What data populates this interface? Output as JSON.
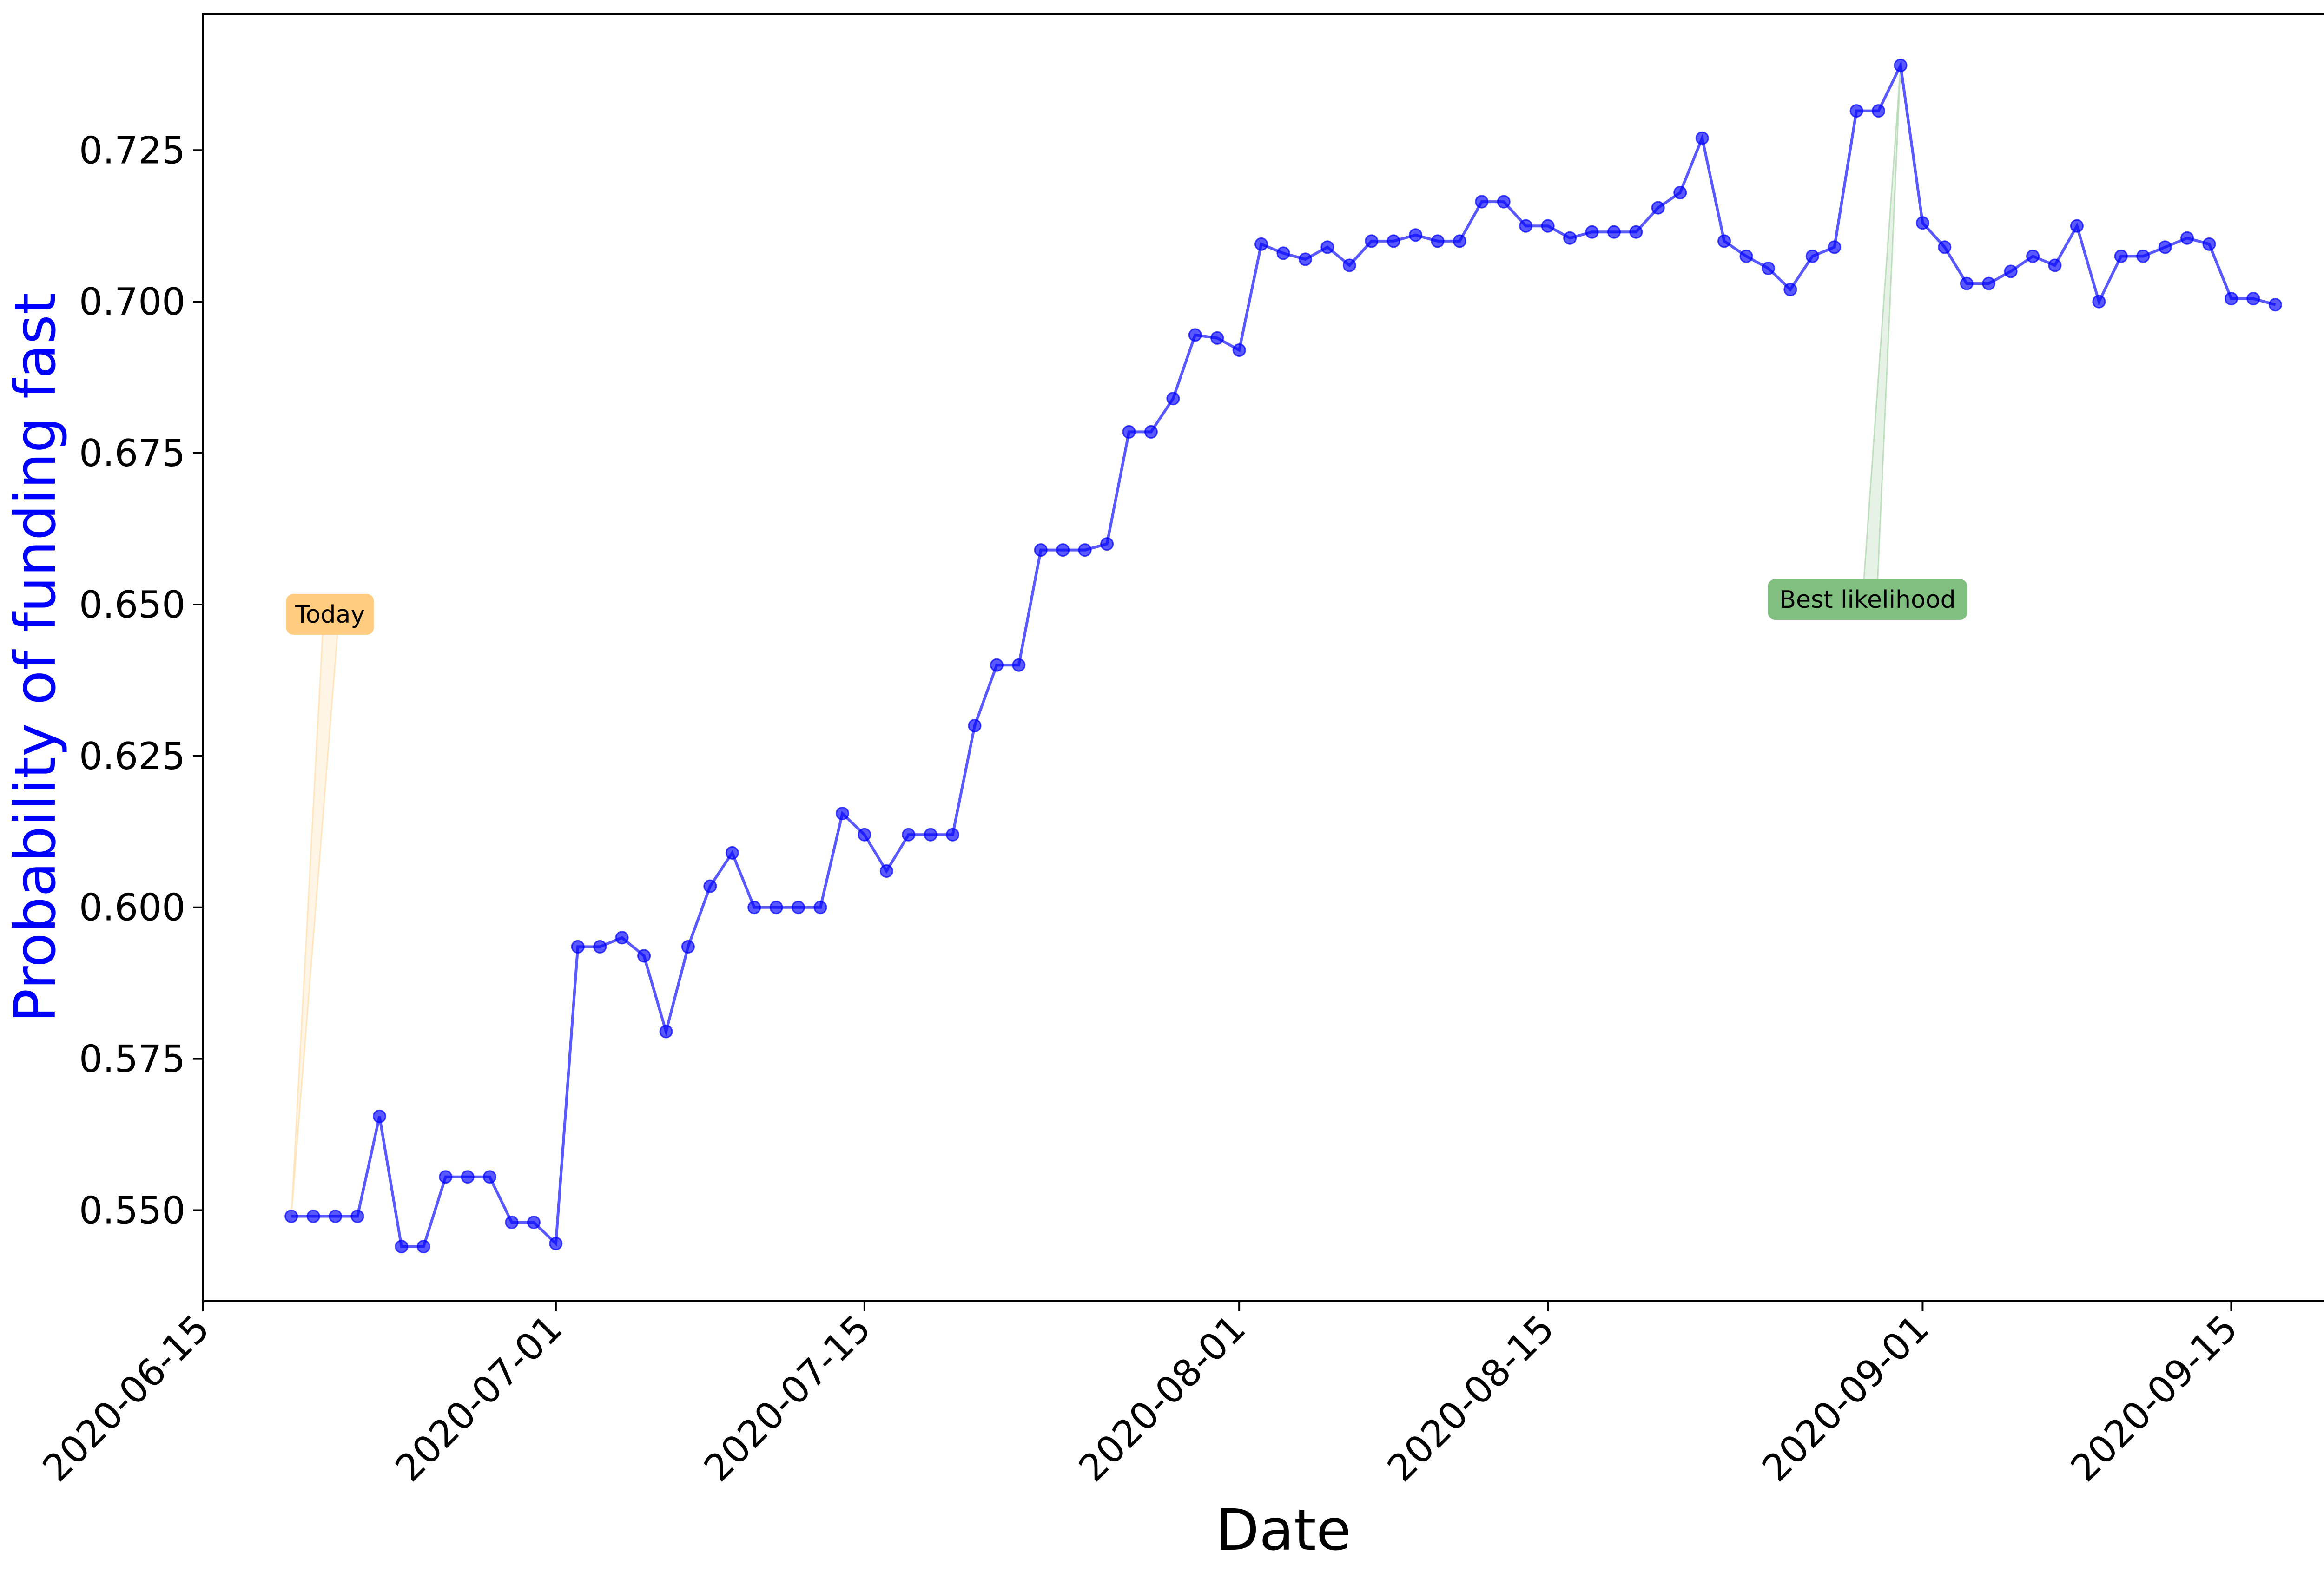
{
  "chart_data": {
    "type": "line",
    "xlabel": "Date",
    "ylabel": "Probability of funding fast",
    "ylabel_color": "#0000ff",
    "line_color": "#0000ff",
    "x_ticks": [
      "2020-06-15",
      "2020-07-01",
      "2020-07-15",
      "2020-08-01",
      "2020-08-15",
      "2020-09-01",
      "2020-09-15"
    ],
    "y_ticks": [
      "0.550",
      "0.575",
      "0.600",
      "0.625",
      "0.650",
      "0.675",
      "0.700",
      "0.725"
    ],
    "xlim": [
      "2020-06-15",
      "2020-09-21"
    ],
    "ylim": [
      0.535,
      0.7475
    ],
    "grid": false,
    "series": [
      {
        "x": [
          "2020-06-19",
          "2020-06-20",
          "2020-06-21",
          "2020-06-22",
          "2020-06-23",
          "2020-06-24",
          "2020-06-25",
          "2020-06-26",
          "2020-06-27",
          "2020-06-28",
          "2020-06-29",
          "2020-06-30",
          "2020-07-01",
          "2020-07-02",
          "2020-07-03",
          "2020-07-04",
          "2020-07-05",
          "2020-07-06",
          "2020-07-07",
          "2020-07-08",
          "2020-07-09",
          "2020-07-10",
          "2020-07-11",
          "2020-07-12",
          "2020-07-13",
          "2020-07-14",
          "2020-07-15",
          "2020-07-16",
          "2020-07-17",
          "2020-07-18",
          "2020-07-19",
          "2020-07-20",
          "2020-07-21",
          "2020-07-22",
          "2020-07-23",
          "2020-07-24",
          "2020-07-25",
          "2020-07-26",
          "2020-07-27",
          "2020-07-28",
          "2020-07-29",
          "2020-07-30",
          "2020-07-31",
          "2020-08-01",
          "2020-08-02",
          "2020-08-03",
          "2020-08-04",
          "2020-08-05",
          "2020-08-06",
          "2020-08-07",
          "2020-08-08",
          "2020-08-09",
          "2020-08-10",
          "2020-08-11",
          "2020-08-12",
          "2020-08-13",
          "2020-08-14",
          "2020-08-15",
          "2020-08-16",
          "2020-08-17",
          "2020-08-18",
          "2020-08-19",
          "2020-08-20",
          "2020-08-21",
          "2020-08-22",
          "2020-08-23",
          "2020-08-24",
          "2020-08-25",
          "2020-08-26",
          "2020-08-27",
          "2020-08-28",
          "2020-08-29",
          "2020-08-30",
          "2020-08-31",
          "2020-09-01",
          "2020-09-02",
          "2020-09-03",
          "2020-09-04",
          "2020-09-05",
          "2020-09-06",
          "2020-09-07",
          "2020-09-08",
          "2020-09-09",
          "2020-09-10",
          "2020-09-11",
          "2020-09-12",
          "2020-09-13",
          "2020-09-14",
          "2020-09-15",
          "2020-09-16",
          "2020-09-17"
        ],
        "y": [
          0.549,
          0.549,
          0.549,
          0.549,
          0.5655,
          0.544,
          0.544,
          0.5555,
          0.5555,
          0.5555,
          0.548,
          0.548,
          0.5445,
          0.5935,
          0.5935,
          0.595,
          0.592,
          0.5795,
          0.5935,
          0.6035,
          0.609,
          0.6,
          0.6,
          0.6,
          0.6,
          0.6155,
          0.612,
          0.606,
          0.612,
          0.612,
          0.612,
          0.63,
          0.64,
          0.64,
          0.659,
          0.659,
          0.659,
          0.66,
          0.6785,
          0.6785,
          0.684,
          0.6945,
          0.694,
          0.692,
          0.7095,
          0.708,
          0.707,
          0.709,
          0.706,
          0.71,
          0.71,
          0.711,
          0.71,
          0.71,
          0.7165,
          0.7165,
          0.7125,
          0.7125,
          0.7105,
          0.7115,
          0.7115,
          0.7115,
          0.7155,
          0.718,
          0.727,
          0.71,
          0.7075,
          0.7055,
          0.702,
          0.7075,
          0.709,
          0.7315,
          0.7315,
          0.739,
          0.713,
          0.709,
          0.703,
          0.703,
          0.705,
          0.7075,
          0.706,
          0.7125,
          0.7,
          0.7075,
          0.7075,
          0.709,
          0.7105,
          0.7095,
          0.7005,
          0.7005,
          0.6995
        ]
      }
    ],
    "annotations": [
      {
        "text": "Today",
        "x": "2020-06-19",
        "y": 0.549,
        "box_color": "#ffcc80"
      },
      {
        "text": "Best likelihood",
        "x": "2020-08-31",
        "y": 0.739,
        "box_color": "#80bf80"
      }
    ]
  }
}
